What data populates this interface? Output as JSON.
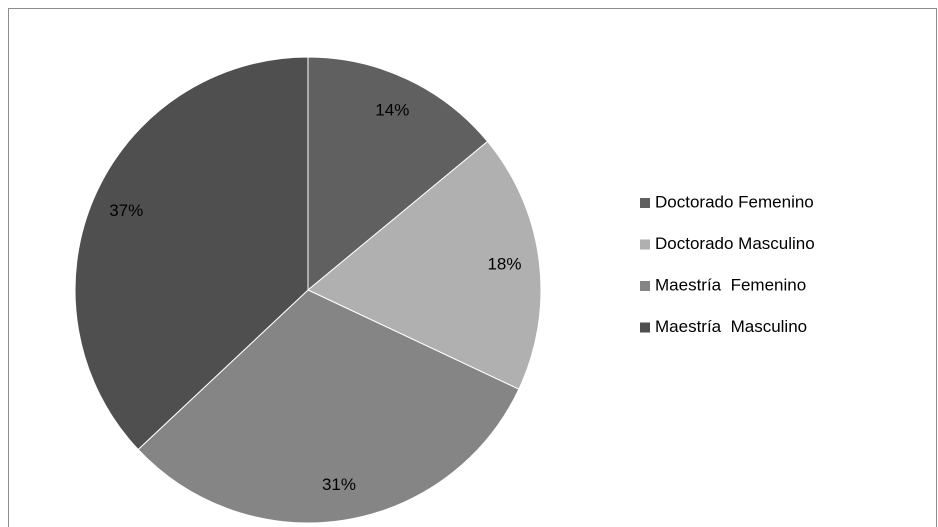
{
  "chart_data": {
    "type": "pie",
    "categories": [
      "Doctorado Femenino",
      "Doctorado Masculino",
      "Maestría  Femenino",
      "Maestría  Masculino"
    ],
    "values": [
      14,
      18,
      31,
      37
    ],
    "value_labels": [
      "14%",
      "18%",
      "31%",
      "37%"
    ],
    "colors": [
      "#606060",
      "#b0b0b0",
      "#858585",
      "#4f4f4f"
    ],
    "legend": "right"
  }
}
